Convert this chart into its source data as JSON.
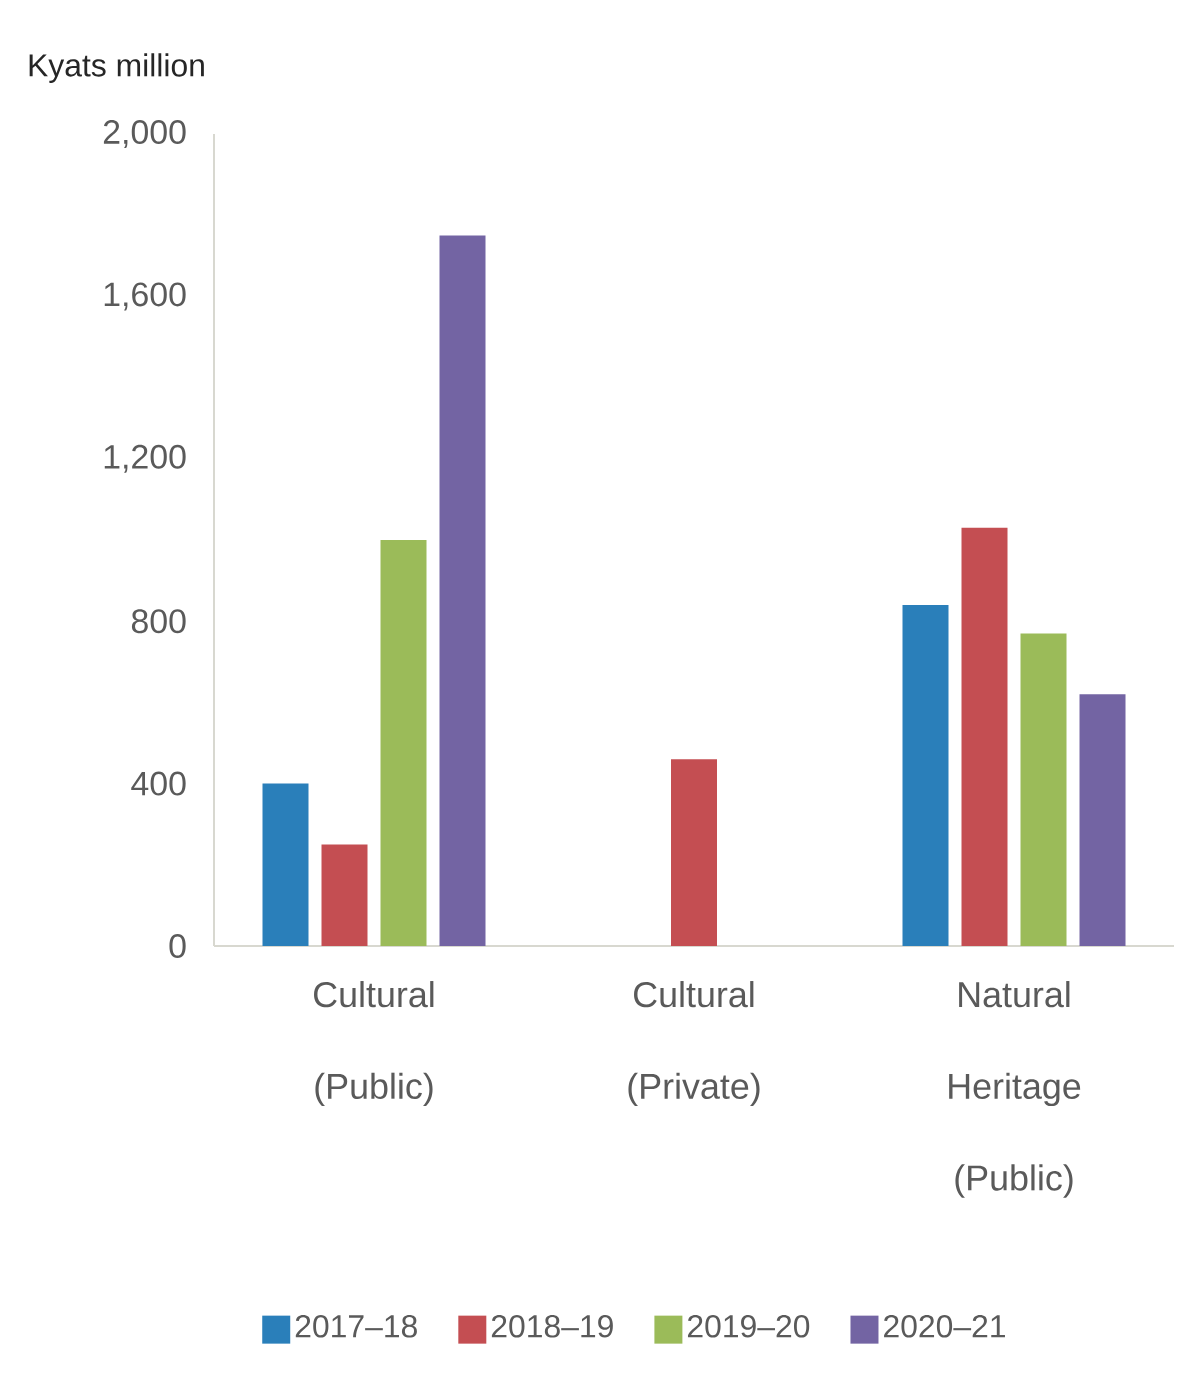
{
  "chart_data": {
    "type": "bar",
    "ylabel": "Kyats million",
    "categories": [
      "Cultural (Public)",
      "Cultural (Private)",
      "Natural Heritage (Public)"
    ],
    "series": [
      {
        "name": "2017–18",
        "color": "#2a7fba",
        "values": [
          400,
          null,
          840
        ]
      },
      {
        "name": "2018–19",
        "color": "#c44e52",
        "values": [
          250,
          460,
          1030
        ]
      },
      {
        "name": "2019–20",
        "color": "#9bbb59",
        "values": [
          1000,
          null,
          770
        ]
      },
      {
        "name": "2020–21",
        "color": "#7364a3",
        "values": [
          1750,
          null,
          620
        ]
      }
    ],
    "ylim": [
      0,
      2000
    ],
    "yticks": [
      0,
      {
        "value": 400,
        "label": "400"
      },
      {
        "value": 800,
        "label": "800"
      },
      {
        "value": 1200,
        "label": "1,200"
      },
      {
        "value": 1600,
        "label": "1,600"
      },
      {
        "value": 2000,
        "label": "2,000"
      }
    ],
    "grid": false,
    "legend": "bottom"
  }
}
